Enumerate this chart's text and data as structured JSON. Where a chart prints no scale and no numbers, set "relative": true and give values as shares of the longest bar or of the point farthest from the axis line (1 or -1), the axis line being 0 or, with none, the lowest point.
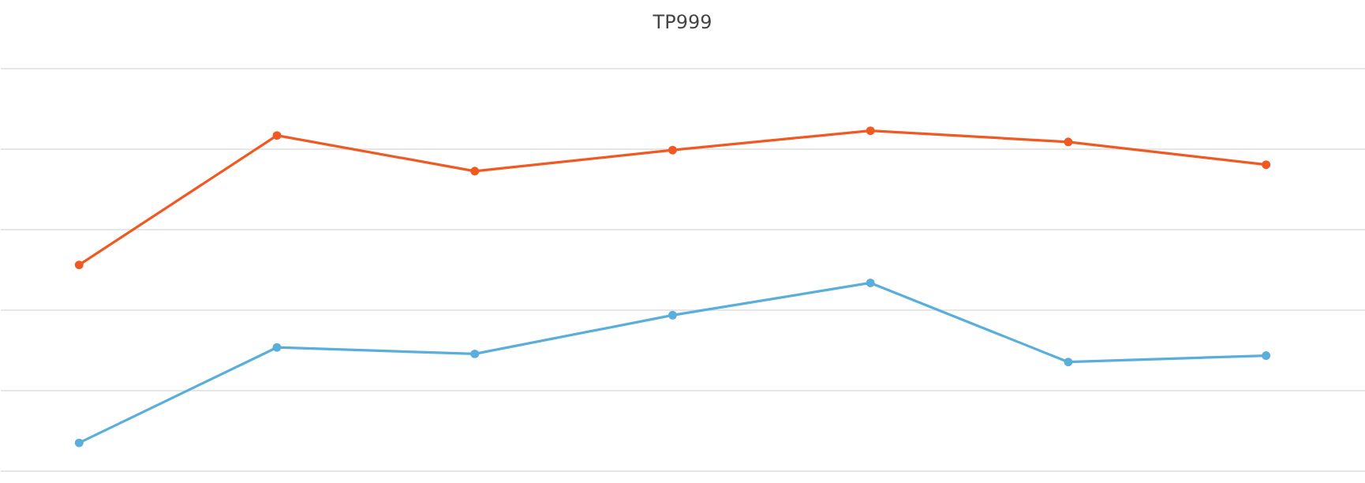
{
  "chart_data": {
    "type": "line",
    "title": "TP999",
    "relative": true,
    "categories": [
      null,
      null,
      null,
      null,
      null,
      null,
      null
    ],
    "series": [
      {
        "color": "#f05a22",
        "values": [
          0.605,
          0.986,
          0.881,
          0.943,
          1,
          0.967,
          0.9
        ]
      },
      {
        "color": "#5aaedb",
        "values": [
          0.081,
          0.362,
          0.343,
          0.457,
          0.552,
          0.319,
          0.338
        ]
      }
    ],
    "grid": "y",
    "marker": "circle",
    "line_style": "solid",
    "tick_labels": false,
    "legend": false
  }
}
